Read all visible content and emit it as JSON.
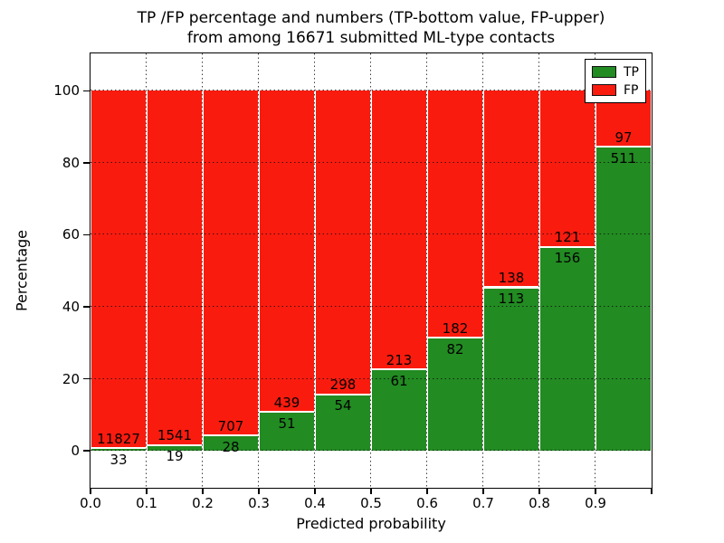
{
  "figure": {
    "title_line1": "TP /FP percentage and numbers (TP-bottom value, FP-upper)",
    "title_line2": "from among 16671 submitted ML-type contacts"
  },
  "chart_data": {
    "type": "bar",
    "subtype": "stacked-percentage-histogram",
    "title": "TP /FP percentage and numbers (TP-bottom value, FP-upper) from among 16671 submitted ML-type contacts",
    "xlabel": "Predicted probability",
    "ylabel": "Percentage",
    "total_contacts": 16671,
    "bin_edges": [
      0.0,
      0.1,
      0.2,
      0.3,
      0.4,
      0.5,
      0.6,
      0.7,
      0.8,
      0.9,
      1.0
    ],
    "x_tick_labels": [
      "0.0",
      "0.1",
      "0.2",
      "0.3",
      "0.4",
      "0.5",
      "0.6",
      "0.7",
      "0.8",
      "0.9"
    ],
    "y_ticks": [
      0,
      20,
      40,
      60,
      80,
      100
    ],
    "xlim": [
      0.0,
      1.0
    ],
    "ylim": [
      -10.3,
      110.4
    ],
    "grid": "dotted",
    "series": [
      {
        "name": "TP",
        "color": "#228b22",
        "values": [
          33,
          19,
          28,
          51,
          54,
          61,
          82,
          113,
          156,
          511
        ]
      },
      {
        "name": "FP",
        "color": "#fa1b0f",
        "values": [
          11827,
          1541,
          707,
          439,
          298,
          213,
          182,
          138,
          121,
          97
        ]
      }
    ],
    "tp_percent_of_bin": [
      0.28,
      1.22,
      3.81,
      10.41,
      15.34,
      22.26,
      31.06,
      45.02,
      56.32,
      84.05
    ],
    "legend": {
      "position": "upper right",
      "entries": [
        {
          "label": "TP",
          "color": "#228b22"
        },
        {
          "label": "FP",
          "color": "#fa1b0f"
        }
      ]
    },
    "colors": {
      "tp": "#228b22",
      "fp": "#fa1b0f",
      "grid": "#0f0f0f",
      "frame": "#000000"
    }
  }
}
